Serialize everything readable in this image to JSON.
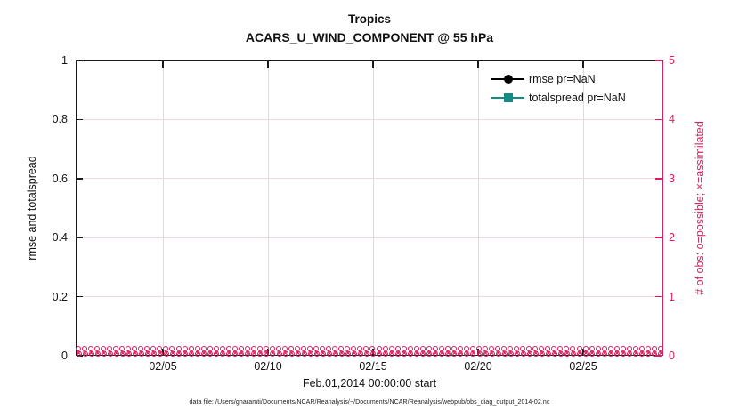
{
  "title": {
    "line1": "Tropics",
    "line2": "ACARS_U_WIND_COMPONENT @ 55 hPa"
  },
  "axes": {
    "left": {
      "label": "rmse and totalspread",
      "ticks": [
        "1",
        "0.8",
        "0.6",
        "0.4",
        "0.2",
        "0"
      ],
      "color": "#1a1a1a"
    },
    "right": {
      "label": "# of obs: o=possible; ×=assimilated",
      "ticks": [
        "5",
        "4",
        "3",
        "2",
        "1",
        "0"
      ],
      "color": "#D81E5B"
    },
    "x": {
      "label": "Feb.01,2014 00:00:00 start",
      "ticks": [
        "02/05",
        "02/10",
        "02/15",
        "02/20",
        "02/25"
      ]
    }
  },
  "legend": [
    {
      "label": "rmse pr=NaN",
      "color": "#000000",
      "marker": "circle"
    },
    {
      "label": "totalspread pr=NaN",
      "color": "#148C85",
      "marker": "square"
    }
  ],
  "markers": {
    "count": 94,
    "possible_symbol": "o",
    "assimilated_symbol": "×",
    "color": "#D81E5B"
  },
  "footnote": "data file: /Users/gharamti/Documents/NCAR/Reanalysis/~/Documents/NCAR/Reanalysis/webpub/obs_diag_output_2014-02.nc",
  "colors": {
    "accent_pink": "#D81E5B",
    "teal": "#148C85",
    "grid_gray": "#dcdcdc",
    "grid_pink": "#f5d7e1"
  },
  "chart_data": {
    "type": "line",
    "title": "Tropics",
    "subtitle": "ACARS_U_WIND_COMPONENT @ 55 hPa",
    "xlabel": "Feb.01,2014 00:00:00 start",
    "x_ticks": [
      "02/05",
      "02/10",
      "02/15",
      "02/20",
      "02/25"
    ],
    "x_range": [
      "2014-02-01 00:00:00",
      "2014-03-01 00:00:00"
    ],
    "left_axis": {
      "label": "rmse and totalspread",
      "lim": [
        0,
        1
      ],
      "ticks": [
        0,
        0.2,
        0.4,
        0.6,
        0.8,
        1
      ]
    },
    "right_axis": {
      "label": "# of obs: o=possible; ×=assimilated",
      "lim": [
        0,
        5
      ],
      "ticks": [
        0,
        1,
        2,
        3,
        4,
        5
      ]
    },
    "series": [
      {
        "name": "rmse pr=NaN",
        "axis": "left",
        "marker": "filled-circle",
        "color": "#000000",
        "values": "all NaN - no curve drawn"
      },
      {
        "name": "totalspread pr=NaN",
        "axis": "left",
        "marker": "filled-square",
        "color": "#148C85",
        "values": "all NaN - no curve drawn"
      },
      {
        "name": "possible obs (o)",
        "axis": "right",
        "marker": "o",
        "color": "#D81E5B",
        "constant_value": 0
      },
      {
        "name": "assimilated obs (×)",
        "axis": "right",
        "marker": "×",
        "color": "#D81E5B",
        "constant_value": 0
      }
    ],
    "grid": true,
    "legend_position": "upper-right-inside"
  }
}
